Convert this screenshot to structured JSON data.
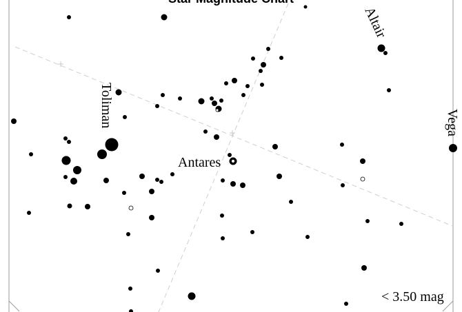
{
  "title": "Star Magnitude Chart",
  "labels": {
    "antares": "Antares",
    "toliman": "Toliman",
    "altair": "Altair",
    "vega": "Vega"
  },
  "legend": {
    "text": "< 3.50 mag"
  }
}
